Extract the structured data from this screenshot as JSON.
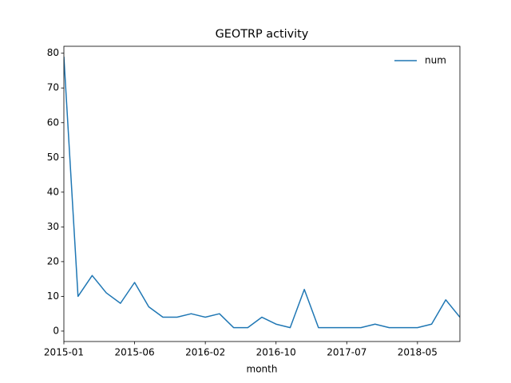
{
  "chart_data": {
    "type": "line",
    "title": "GEOTRP activity",
    "x_label": "month",
    "categories": [
      "2015-01",
      null,
      null,
      null,
      null,
      "2015-06",
      null,
      null,
      null,
      null,
      "2016-02",
      null,
      null,
      null,
      null,
      "2016-10",
      null,
      null,
      null,
      null,
      "2017-07",
      null,
      null,
      null,
      null,
      "2018-05",
      null,
      null,
      null
    ],
    "series": [
      {
        "name": "num",
        "color": "#1f77b4",
        "values": [
          79,
          10,
          16,
          11,
          8,
          14,
          7,
          4,
          4,
          5,
          4,
          5,
          1,
          1,
          4,
          2,
          1,
          12,
          1,
          1,
          1,
          1,
          2,
          1,
          1,
          1,
          2,
          9,
          4
        ]
      }
    ],
    "ylim": [
      -3,
      82
    ],
    "yticks": [
      0,
      10,
      20,
      30,
      40,
      50,
      60,
      70,
      80
    ],
    "legend": "upper right",
    "grid": false
  }
}
